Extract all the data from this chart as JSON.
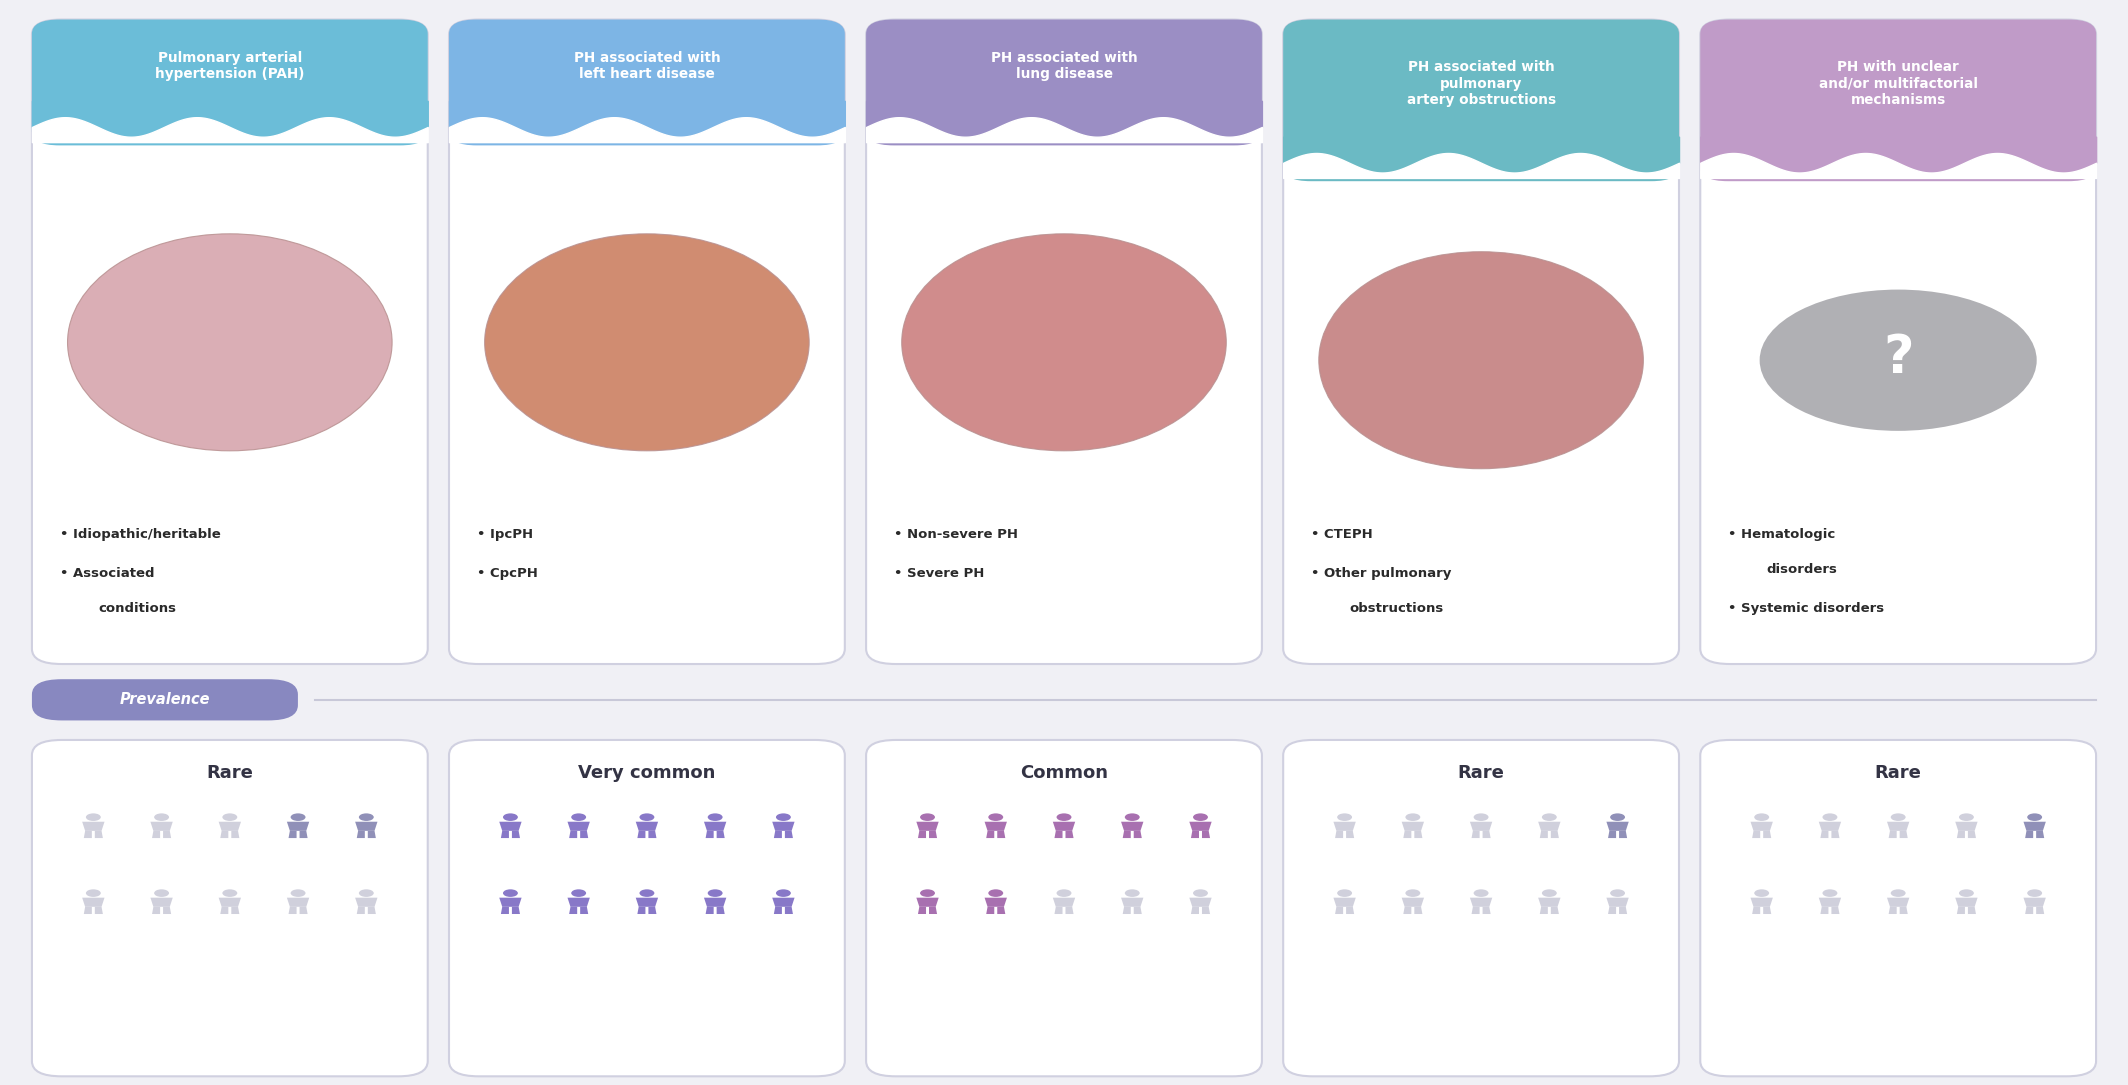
{
  "background_color": "#f0f0f5",
  "header_colors": [
    "#6bbdd8",
    "#7db5e5",
    "#9b8ec4",
    "#6bbac4",
    "#c09bc8"
  ],
  "categories": [
    {
      "title": "Pulmonary arterial\nhypertension (PAH)",
      "bullet_points": [
        "Idiopathic/heritable",
        "Associated\nconditions"
      ],
      "prevalence": "Rare",
      "icon_row1_colored": [
        4,
        5
      ],
      "icon_row2_colored": [],
      "active_color": "#9090b8"
    },
    {
      "title": "PH associated with\nleft heart disease",
      "bullet_points": [
        "IpcPH",
        "CpcPH"
      ],
      "prevalence": "Very common",
      "icon_row1_colored": [
        1,
        2,
        3,
        4,
        5
      ],
      "icon_row2_colored": [
        1,
        2,
        3,
        4,
        5
      ],
      "active_color": "#8878c8"
    },
    {
      "title": "PH associated with\nlung disease",
      "bullet_points": [
        "Non-severe PH",
        "Severe PH"
      ],
      "prevalence": "Common",
      "icon_row1_colored": [
        1,
        2,
        3,
        4,
        5
      ],
      "icon_row2_colored": [
        1,
        2
      ],
      "active_color": "#a870b0"
    },
    {
      "title": "PH associated with\npulmonary\nartery obstructions",
      "bullet_points": [
        "CTEPH",
        "Other pulmonary\nobstructions"
      ],
      "prevalence": "Rare",
      "icon_row1_colored": [
        5
      ],
      "icon_row2_colored": [],
      "active_color": "#9090b8"
    },
    {
      "title": "PH with unclear\nand/or multifactorial\nmechanisms",
      "bullet_points": [
        "Hematologic\ndisorders",
        "Systemic disorders"
      ],
      "prevalence": "Rare",
      "icon_row1_colored": [
        5
      ],
      "icon_row2_colored": [],
      "active_color": "#9090b8"
    }
  ],
  "prevalence_label": "Prevalence",
  "prevalence_bg": "#8888c0",
  "icon_inactive_color": "#d0d0dc",
  "card_border": "#d0d0e0",
  "card_bg": "#ffffff"
}
